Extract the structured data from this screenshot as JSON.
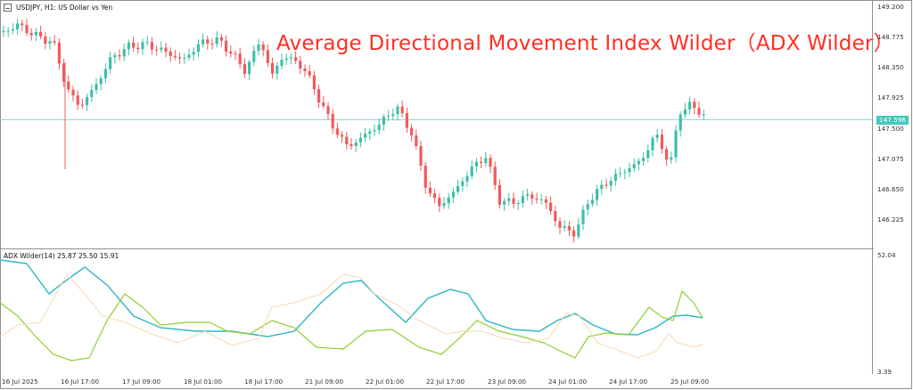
{
  "symbol": {
    "label": "USDJPY, H1:  US Dollar vs Yen",
    "icon": "minimize-icon"
  },
  "title": "Average Directional Movement Index Wilder（ADX Wilder）",
  "current_price": "147.596",
  "indicator": {
    "label": "ADX Wilder(14) 25.87 25.50 15.91"
  },
  "price_axis": [
    "149.200",
    "148.775",
    "148.350",
    "147.925",
    "147.500",
    "147.075",
    "146.650",
    "146.225"
  ],
  "indicator_axis": [
    "52.04",
    "3.39"
  ],
  "time_axis": [
    "16 Jul 2025",
    "16 Jul 17:00",
    "17 Jul 09:00",
    "18 Jul 01:00",
    "18 Jul 17:00",
    "21 Jul 09:00",
    "22 Jul 01:00",
    "22 Jul 17:00",
    "23 Jul 09:00",
    "24 Jul 01:00",
    "24 Jul 17:00",
    "25 Jul 09:00"
  ],
  "colors": {
    "bull": "#3fbfa8",
    "bear": "#ef5a5a",
    "adx": "#2cb7c2",
    "plus_di": "#8fcf2f",
    "minus_di": "#f6d9b3",
    "title": "#ff2f24"
  }
}
